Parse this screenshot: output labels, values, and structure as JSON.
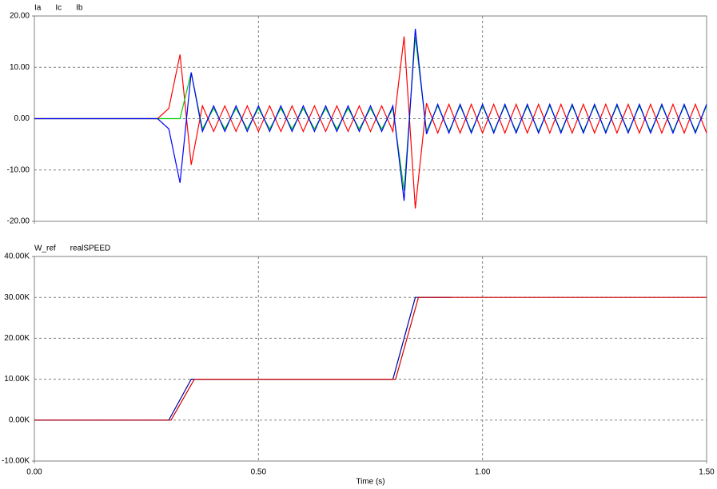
{
  "chart_data": [
    {
      "type": "line",
      "xlim": [
        0,
        1.5
      ],
      "xticks": [
        0,
        0.5,
        1,
        1.5
      ],
      "ylim": [
        -20,
        20
      ],
      "yticks": [
        {
          "value": -20,
          "label": "-20.00"
        },
        {
          "value": -10,
          "label": "-10.00"
        },
        {
          "value": 0,
          "label": "0.00"
        },
        {
          "value": 10,
          "label": "10.00"
        },
        {
          "value": 20,
          "label": "20.00"
        }
      ],
      "grid": true,
      "x": [
        0,
        0.025,
        0.05,
        0.075,
        0.1,
        0.125,
        0.15,
        0.175,
        0.2,
        0.225,
        0.25,
        0.275,
        0.3,
        0.325,
        0.35,
        0.375,
        0.4,
        0.425,
        0.45,
        0.475,
        0.5,
        0.525,
        0.55,
        0.575,
        0.6,
        0.625,
        0.65,
        0.675,
        0.7,
        0.725,
        0.75,
        0.775,
        0.8,
        0.825,
        0.85,
        0.875,
        0.9,
        0.925,
        0.95,
        0.975,
        1,
        1.025,
        1.05,
        1.075,
        1.1,
        1.125,
        1.15,
        1.175,
        1.2,
        1.225,
        1.25,
        1.275,
        1.3,
        1.325,
        1.35,
        1.375,
        1.4,
        1.425,
        1.45,
        1.475,
        1.5
      ],
      "series": [
        {
          "name": "Ia",
          "color": "#ff0000",
          "values": [
            0,
            0,
            0,
            0,
            0,
            0,
            0,
            0,
            0,
            0,
            0,
            0,
            2,
            12.5,
            -9,
            2.5,
            -2.5,
            2.5,
            -2.5,
            2.5,
            -2.5,
            2.5,
            -2.5,
            2.5,
            -2.5,
            2.5,
            -2.5,
            2.5,
            -2.5,
            2.5,
            -2.5,
            2.5,
            -2.5,
            16,
            -17.5,
            3,
            -2.8,
            2.8,
            -2.8,
            2.8,
            -2.8,
            2.8,
            -2.8,
            2.8,
            -2.8,
            2.8,
            -2.8,
            2.8,
            -2.8,
            2.8,
            -2.8,
            2.8,
            -2.8,
            2.8,
            -2.8,
            2.8,
            -2.8,
            2.8,
            -2.8,
            2.8,
            -2.8
          ]
        },
        {
          "name": "Ic",
          "color": "#00cc00",
          "values": [
            0,
            0,
            0,
            0,
            0,
            0,
            0,
            0,
            0,
            0,
            0,
            0,
            0,
            0,
            9,
            -2,
            2,
            -2,
            2,
            -2,
            2,
            -2,
            2,
            -2,
            2,
            -2,
            2,
            -2,
            2,
            -2,
            2,
            -2,
            2,
            -14,
            16,
            -2.5,
            2.5,
            -2.5,
            2.5,
            -2.5,
            2.5,
            -2.5,
            2.5,
            -2.5,
            2.5,
            -2.5,
            2.5,
            -2.5,
            2.5,
            -2.5,
            2.5,
            -2.5,
            2.5,
            -2.5,
            2.5,
            -2.5,
            2.5,
            -2.5,
            2.5,
            -2.5,
            2.5
          ]
        },
        {
          "name": "Ib",
          "color": "#0000ff",
          "values": [
            0,
            0,
            0,
            0,
            0,
            0,
            0,
            0,
            0,
            0,
            0,
            0,
            -2,
            -12.5,
            9,
            -2.5,
            2.5,
            -2.5,
            2.5,
            -2.5,
            2.5,
            -2.5,
            2.5,
            -2.5,
            2.5,
            -2.5,
            2.5,
            -2.5,
            2.5,
            -2.5,
            2.5,
            -2.5,
            2.5,
            -16,
            17.5,
            -3,
            2.8,
            -2.8,
            2.8,
            -2.8,
            2.8,
            -2.8,
            2.8,
            -2.8,
            2.8,
            -2.8,
            2.8,
            -2.8,
            2.8,
            -2.8,
            2.8,
            -2.8,
            2.8,
            -2.8,
            2.8,
            -2.8,
            2.8,
            -2.8,
            2.8,
            -2.8,
            2.8
          ]
        }
      ]
    },
    {
      "type": "line",
      "xlabel": "Time (s)",
      "xlim": [
        0,
        1.5
      ],
      "xticks": [
        {
          "value": 0,
          "label": "0.00"
        },
        {
          "value": 0.5,
          "label": "0.50"
        },
        {
          "value": 1,
          "label": "1.00"
        },
        {
          "value": 1.5,
          "label": "1.50"
        }
      ],
      "ylim": [
        -10000,
        40000
      ],
      "yticks": [
        {
          "value": -10000,
          "label": "-10.00K"
        },
        {
          "value": 0,
          "label": "0.00K"
        },
        {
          "value": 10000,
          "label": "10.00K"
        },
        {
          "value": 20000,
          "label": "20.00K"
        },
        {
          "value": 30000,
          "label": "30.00K"
        },
        {
          "value": 40000,
          "label": "40.00K"
        }
      ],
      "grid": true,
      "series": [
        {
          "name": "W_ref",
          "color": "#0000a0",
          "x": [
            0,
            0.3,
            0.35,
            0.8,
            0.85,
            0.93
          ],
          "values": [
            0,
            0,
            10000,
            10000,
            30000,
            30000
          ]
        },
        {
          "name": "realSPEED",
          "color": "#cc0000",
          "x": [
            0,
            0.305,
            0.357,
            0.806,
            0.857,
            1.5
          ],
          "values": [
            0,
            0,
            10000,
            10000,
            30000,
            30000
          ]
        }
      ]
    }
  ]
}
